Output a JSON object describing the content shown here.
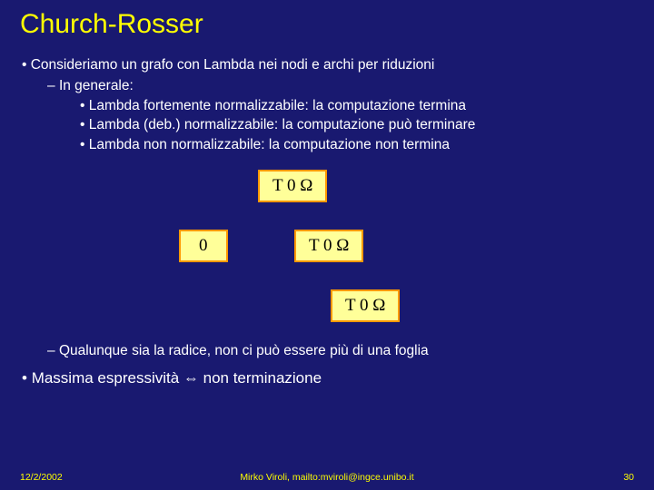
{
  "title": "Church-Rosser",
  "bullets": {
    "l1": "Consideriamo un grafo con Lambda nei nodi e archi per riduzioni",
    "l2": "In generale:",
    "l3a": "Lambda fortemente normalizzabile: la computazione termina",
    "l3b": "Lambda (deb.) normalizzabile: la computazione può terminare",
    "l3c": "Lambda non normalizzabile: la computazione non termina",
    "after": "Qualunque sia la radice, non ci può essere più di una foglia",
    "l1b": "Massima espressività ⇔ non terminazione"
  },
  "nodes": {
    "top": "T 0 Ω",
    "leaf": "0",
    "mid": "T 0 Ω",
    "bottom": "T 0 Ω"
  },
  "footer": {
    "date": "12/2/2002",
    "author": "Mirko Viroli, mailto:mviroli@ingce.unibo.it",
    "page": "30"
  },
  "style": {
    "background_color": "#191970",
    "title_color": "#fefe00",
    "text_color": "#ffffff",
    "node_bg": "#ffff99",
    "node_border": "#ff9900",
    "footer_color": "#fefe00",
    "title_fontsize": 30,
    "body_fontsize": 15.5,
    "node_fontsize": 19
  }
}
